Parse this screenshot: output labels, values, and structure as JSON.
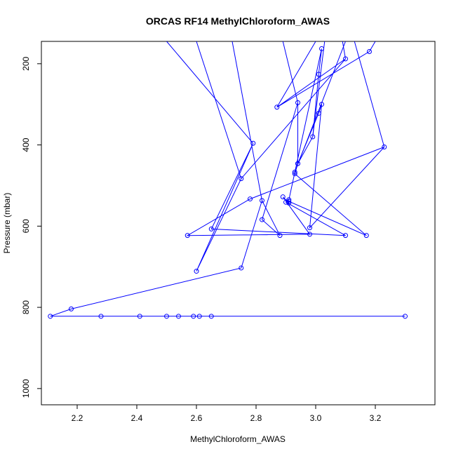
{
  "chart_data": {
    "type": "line",
    "title": "ORCAS RF14 MethylChloroform_AWAS",
    "xlabel": "MethylChloroform_AWAS",
    "ylabel": "Pressure (mbar)",
    "xlim": [
      2.08,
      3.4
    ],
    "ylim": [
      1040,
      145
    ],
    "y_reversed": true,
    "x_ticks": [
      2.2,
      2.4,
      2.6,
      2.8,
      3.0,
      3.2
    ],
    "x_tick_labels": [
      "2.2",
      "2.4",
      "2.6",
      "2.8",
      "3.0",
      "3.2"
    ],
    "y_ticks": [
      200,
      400,
      600,
      800,
      1000
    ],
    "y_tick_labels": [
      "200",
      "400",
      "600",
      "800",
      "1000"
    ],
    "grid": false,
    "line_color": "#0000ff",
    "marker": "open-circle",
    "series": [
      {
        "x": [
          3.3,
          2.65,
          2.61,
          2.59,
          2.54,
          2.5,
          2.41,
          2.28,
          2.11,
          2.18,
          2.75,
          2.82,
          2.88,
          2.82,
          2.94,
          2.94,
          3.01,
          3.02,
          2.98,
          3.23,
          2.78,
          2.57,
          2.98,
          2.89,
          2.91,
          2.91,
          3.17,
          2.93,
          2.94,
          2.99,
          3.01,
          3.02,
          2.93,
          2.91,
          2.9,
          3.1,
          2.65,
          2.79,
          2.6,
          2.75,
          3.1,
          2.87,
          3.18
        ],
        "y": [
          822,
          822,
          822,
          822,
          822,
          822,
          822,
          822,
          822,
          804,
          703,
          537,
          623,
          584,
          296,
          446,
          322,
          300,
          604,
          405,
          533,
          623,
          620,
          528,
          543,
          539,
          623,
          471,
          446,
          380,
          226,
          163,
          467,
          535,
          541,
          623,
          607,
          396,
          711,
          483,
          188,
          307,
          170
        ]
      }
    ],
    "segments_to_offscreen": [
      {
        "from_x": 2.79,
        "from_y": 396,
        "to_x": 2.5,
        "to_y": 145
      },
      {
        "from_x": 2.75,
        "from_y": 483,
        "to_x": 2.6,
        "to_y": 145
      },
      {
        "from_x": 2.82,
        "from_y": 537,
        "to_x": 2.72,
        "to_y": 145
      },
      {
        "from_x": 2.94,
        "from_y": 296,
        "to_x": 2.89,
        "to_y": 145
      },
      {
        "from_x": 2.87,
        "from_y": 307,
        "to_x": 3.0,
        "to_y": 145
      },
      {
        "from_x": 2.99,
        "from_y": 380,
        "to_x": 3.03,
        "to_y": 145
      },
      {
        "from_x": 3.1,
        "from_y": 188,
        "to_x": 3.09,
        "to_y": 145
      },
      {
        "from_x": 3.23,
        "from_y": 405,
        "to_x": 3.13,
        "to_y": 145
      },
      {
        "from_x": 2.93,
        "from_y": 467,
        "to_x": 3.1,
        "to_y": 145
      },
      {
        "from_x": 3.18,
        "from_y": 170,
        "to_x": 3.2,
        "to_y": 145
      }
    ]
  }
}
